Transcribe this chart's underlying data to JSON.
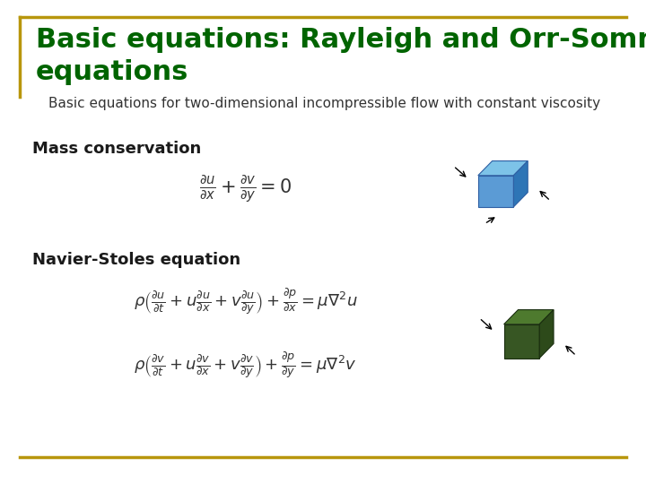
{
  "bg_color": "#ffffff",
  "title_line1": "Basic equations: Rayleigh and Orr-Sommerfeld",
  "title_line2": "equations",
  "title_color": "#006400",
  "title_fontsize": 22,
  "subtitle": "Basic equations for two-dimensional incompressible flow with constant viscosity",
  "subtitle_color": "#333333",
  "subtitle_fontsize": 11,
  "section1": "Mass conservation",
  "section1_color": "#1a1a1a",
  "section1_fontsize": 13,
  "section2": "Navier-Stoles equation",
  "section2_color": "#1a1a1a",
  "section2_fontsize": 13,
  "eq_fontsize": 15,
  "ns_fontsize": 13,
  "border_color": "#b8960c",
  "cube1_color_front": "#5b9bd5",
  "cube1_color_top": "#7dc3e8",
  "cube1_color_right": "#2e75b6",
  "cube1_edge": "#2e5fa3",
  "cube2_color_front": "#375623",
  "cube2_color_top": "#4e7a2e",
  "cube2_color_right": "#2d4a1a",
  "cube2_edge": "#1a2e10"
}
